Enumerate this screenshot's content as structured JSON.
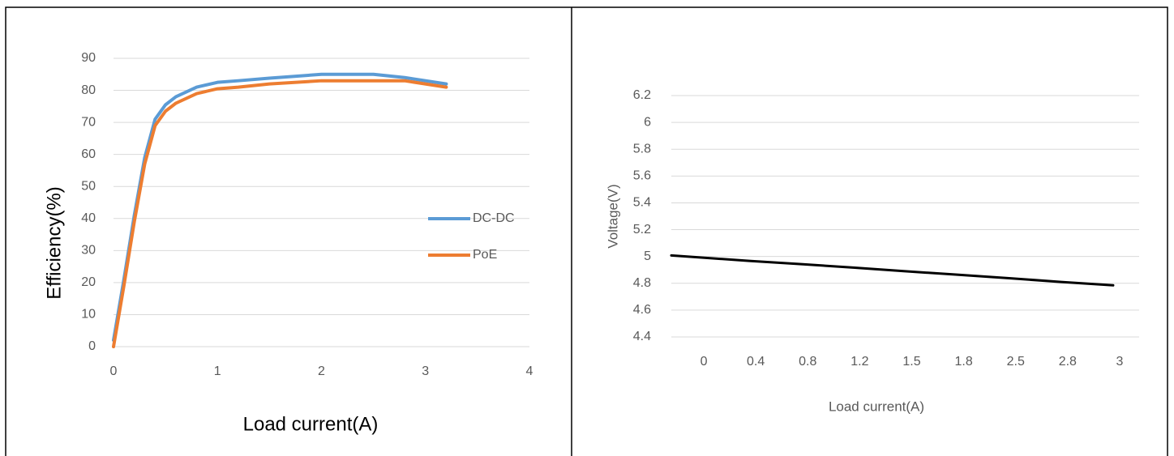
{
  "chart_data": [
    {
      "type": "line",
      "x_label": "Load current(A)",
      "y_label": "Efficiency(%)",
      "xlim": [
        0,
        4
      ],
      "xticks": [
        0,
        1,
        2,
        3,
        4
      ],
      "ylim": [
        0,
        90
      ],
      "yticks": [
        0,
        10,
        20,
        30,
        40,
        50,
        60,
        70,
        80,
        90
      ],
      "grid": true,
      "legend": "right",
      "series": [
        {
          "name": "DC-DC",
          "color": "#5b9bd5",
          "x": [
            0,
            0.1,
            0.2,
            0.3,
            0.4,
            0.5,
            0.6,
            0.8,
            1,
            1.2,
            1.5,
            2,
            2.5,
            2.8,
            3.2
          ],
          "values": [
            2,
            21,
            41,
            59,
            71,
            75.5,
            78,
            81,
            82.5,
            83,
            83.8,
            85,
            85,
            84,
            82
          ]
        },
        {
          "name": "PoE",
          "color": "#ed7d31",
          "x": [
            0,
            0.1,
            0.2,
            0.3,
            0.4,
            0.5,
            0.6,
            0.8,
            1,
            1.2,
            1.5,
            2,
            2.5,
            2.8,
            3.2
          ],
          "values": [
            0,
            19,
            39,
            57,
            69,
            73.5,
            76,
            79,
            80.5,
            81,
            82,
            83,
            83,
            83,
            81
          ]
        }
      ]
    },
    {
      "type": "line",
      "x_label": "Load current(A)",
      "y_label": "Voltage(V)",
      "categories": [
        "0",
        "0.4",
        "0.8",
        "1.2",
        "1.5",
        "1.8",
        "2.5",
        "2.8",
        "3"
      ],
      "ylim": [
        4.4,
        6.2
      ],
      "yticks": [
        4.4,
        4.6,
        4.8,
        5,
        5.2,
        5.4,
        5.6,
        5.8,
        6,
        6.2
      ],
      "grid": true,
      "series": [
        {
          "color": "#000000",
          "values": [
            4.994,
            4.967,
            4.943,
            4.917,
            4.89,
            4.864,
            4.838,
            4.81,
            4.785
          ]
        }
      ]
    }
  ]
}
